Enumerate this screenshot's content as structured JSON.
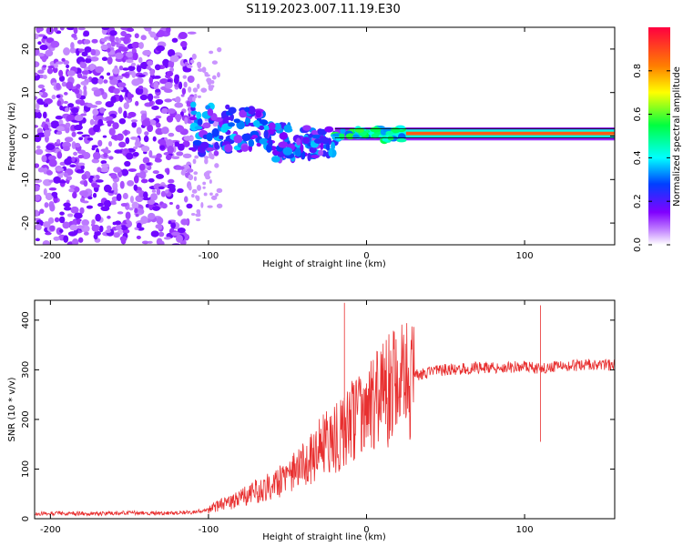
{
  "title": "S119.2023.007.11.19.E30",
  "chart_data": [
    {
      "type": "heatmap",
      "name": "spectrogram",
      "xlabel": "Height of straight line (km)",
      "ylabel": "Frequency (Hz)",
      "xlim": [
        -210,
        157
      ],
      "ylim": [
        -25,
        25
      ],
      "xticks": [
        -200,
        -100,
        0,
        100
      ],
      "yticks": [
        -20,
        -10,
        0,
        10,
        20
      ],
      "xtick_labels": [
        "-200",
        "-100",
        "0",
        "100"
      ],
      "ytick_labels": [
        "-20",
        "-10",
        "0",
        "10",
        "20"
      ],
      "colorbar": {
        "label": "Normalized spectral amplitude",
        "range": [
          0,
          1
        ],
        "ticks": [
          0.0,
          0.2,
          0.4,
          0.6,
          0.8
        ],
        "tick_labels": [
          "0.0",
          "0.2",
          "0.4",
          "0.6",
          "0.8"
        ],
        "colormap": [
          "#ffffff",
          "#8000ff",
          "#0040ff",
          "#00ffff",
          "#00ff40",
          "#ffff00",
          "#ff8000",
          "#ff0040"
        ]
      },
      "regions": [
        {
          "x_range": [
            -210,
            -110
          ],
          "y_range": [
            -25,
            25
          ],
          "description": "broadband noise",
          "amplitude": 0.15
        },
        {
          "x_range": [
            -110,
            -20
          ],
          "y_range": [
            -7,
            8
          ],
          "description": "scattered blobs",
          "amplitude": 0.3
        },
        {
          "x_range": [
            -20,
            157
          ],
          "y_range": [
            -1,
            2
          ],
          "description": "narrow tone",
          "amplitude": 0.9
        }
      ]
    },
    {
      "type": "line",
      "name": "snr",
      "xlabel": "Height of straight line (km)",
      "ylabel": "SNR (10 * v/v)",
      "xlim": [
        -210,
        157
      ],
      "ylim": [
        0,
        440
      ],
      "xticks": [
        -200,
        -100,
        0,
        100
      ],
      "yticks": [
        0,
        100,
        200,
        300,
        400
      ],
      "xtick_labels": [
        "-200",
        "-100",
        "0",
        "100"
      ],
      "ytick_labels": [
        "0",
        "100",
        "200",
        "300",
        "400"
      ],
      "color": "#e83030",
      "series": [
        {
          "name": "SNR",
          "x": [
            -210,
            -190,
            -170,
            -150,
            -130,
            -110,
            -100,
            -95,
            -90,
            -85,
            -80,
            -75,
            -70,
            -65,
            -60,
            -55,
            -50,
            -45,
            -40,
            -35,
            -30,
            -25,
            -20,
            -15,
            -10,
            -5,
            0,
            5,
            10,
            15,
            20,
            25,
            30,
            40,
            50,
            60,
            70,
            80,
            90,
            100,
            105,
            110,
            115,
            120,
            130,
            140,
            150,
            157
          ],
          "y": [
            10,
            11,
            10,
            12,
            11,
            13,
            18,
            25,
            30,
            35,
            42,
            48,
            55,
            62,
            70,
            78,
            85,
            95,
            105,
            120,
            140,
            155,
            165,
            175,
            190,
            205,
            215,
            230,
            248,
            262,
            272,
            280,
            288,
            295,
            300,
            302,
            304,
            305,
            306,
            306,
            305,
            300,
            307,
            308,
            309,
            310,
            310,
            309
          ]
        }
      ],
      "spikes": [
        {
          "x": -14,
          "y": 435
        },
        {
          "x": 110,
          "y": 430
        },
        {
          "x": 110,
          "y": 155
        }
      ]
    }
  ]
}
